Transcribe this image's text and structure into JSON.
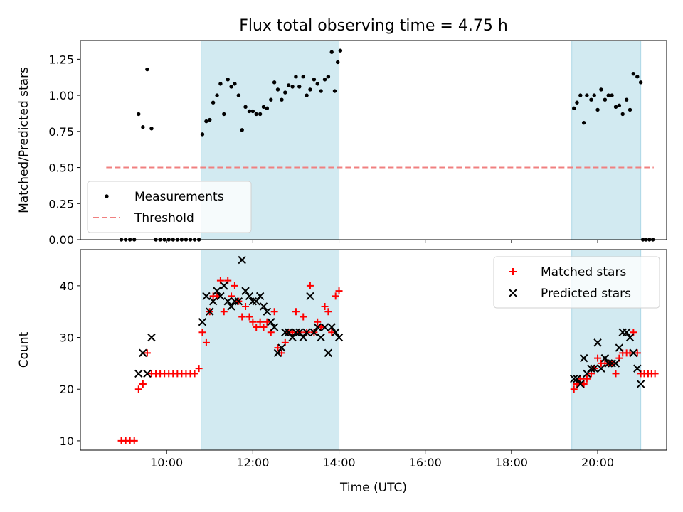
{
  "chart_data": {
    "title": "Flux total observing time = 4.75 h",
    "xlabel": "Time (UTC)",
    "x_units": "hours UTC",
    "xlim": [
      8.0,
      21.6
    ],
    "x_ticks": [
      {
        "value": 10,
        "label": "10:00"
      },
      {
        "value": 12,
        "label": "12:00"
      },
      {
        "value": 14,
        "label": "14:00"
      },
      {
        "value": 16,
        "label": "16:00"
      },
      {
        "value": 18,
        "label": "18:00"
      },
      {
        "value": 20,
        "label": "20:00"
      }
    ],
    "shaded_intervals": [
      [
        10.8,
        14.0
      ],
      [
        19.4,
        21.0
      ]
    ],
    "shade_color": "#add8e6",
    "panels": [
      {
        "type": "scatter",
        "ylabel": "Matched/Predicted stars",
        "ylim": [
          0,
          1.38
        ],
        "y_ticks": [
          "0.00",
          "0.25",
          "0.50",
          "0.75",
          "1.00",
          "1.25"
        ],
        "legend": {
          "position": "lower-left"
        },
        "series": [
          {
            "name": "Measurements",
            "marker": "dot",
            "color": "#000000",
            "points": [
              [
                8.95,
                0
              ],
              [
                9.05,
                0
              ],
              [
                9.15,
                0
              ],
              [
                9.25,
                0
              ],
              [
                9.35,
                0.87
              ],
              [
                9.45,
                0.78
              ],
              [
                9.55,
                1.18
              ],
              [
                9.65,
                0.77
              ],
              [
                9.75,
                0
              ],
              [
                9.85,
                0
              ],
              [
                9.95,
                0
              ],
              [
                10.05,
                0
              ],
              [
                10.15,
                0
              ],
              [
                10.25,
                0
              ],
              [
                10.35,
                0
              ],
              [
                10.45,
                0
              ],
              [
                10.55,
                0
              ],
              [
                10.65,
                0
              ],
              [
                10.75,
                0
              ],
              [
                10.83,
                0.73
              ],
              [
                10.92,
                0.82
              ],
              [
                11.0,
                0.83
              ],
              [
                11.08,
                0.95
              ],
              [
                11.17,
                1.0
              ],
              [
                11.25,
                1.08
              ],
              [
                11.33,
                0.87
              ],
              [
                11.42,
                1.11
              ],
              [
                11.5,
                1.06
              ],
              [
                11.58,
                1.08
              ],
              [
                11.67,
                1.0
              ],
              [
                11.75,
                0.76
              ],
              [
                11.83,
                0.92
              ],
              [
                11.92,
                0.89
              ],
              [
                12.0,
                0.89
              ],
              [
                12.08,
                0.87
              ],
              [
                12.17,
                0.87
              ],
              [
                12.25,
                0.92
              ],
              [
                12.33,
                0.91
              ],
              [
                12.42,
                0.97
              ],
              [
                12.5,
                1.09
              ],
              [
                12.58,
                1.04
              ],
              [
                12.67,
                0.97
              ],
              [
                12.75,
                1.02
              ],
              [
                12.83,
                1.07
              ],
              [
                12.92,
                1.06
              ],
              [
                13.0,
                1.13
              ],
              [
                13.08,
                1.06
              ],
              [
                13.17,
                1.13
              ],
              [
                13.25,
                1.0
              ],
              [
                13.33,
                1.04
              ],
              [
                13.42,
                1.11
              ],
              [
                13.5,
                1.08
              ],
              [
                13.58,
                1.03
              ],
              [
                13.67,
                1.11
              ],
              [
                13.75,
                1.13
              ],
              [
                13.83,
                1.3
              ],
              [
                13.9,
                1.03
              ],
              [
                13.97,
                1.23
              ],
              [
                14.03,
                1.31
              ],
              [
                19.45,
                0.91
              ],
              [
                19.52,
                0.95
              ],
              [
                19.6,
                1.0
              ],
              [
                19.68,
                0.81
              ],
              [
                19.75,
                1.0
              ],
              [
                19.85,
                0.97
              ],
              [
                19.92,
                1.0
              ],
              [
                20.0,
                0.9
              ],
              [
                20.08,
                1.04
              ],
              [
                20.17,
                0.97
              ],
              [
                20.25,
                1.0
              ],
              [
                20.33,
                1.0
              ],
              [
                20.42,
                0.92
              ],
              [
                20.5,
                0.93
              ],
              [
                20.58,
                0.87
              ],
              [
                20.67,
                0.97
              ],
              [
                20.75,
                0.9
              ],
              [
                20.83,
                1.15
              ],
              [
                20.92,
                1.13
              ],
              [
                21.0,
                1.09
              ],
              [
                21.05,
                0
              ],
              [
                21.12,
                0
              ],
              [
                21.2,
                0
              ],
              [
                21.28,
                0
              ]
            ]
          },
          {
            "name": "Threshold",
            "marker": "dashed-line",
            "color": "#f08080",
            "x": [
              8.6,
              21.3
            ],
            "y": [
              0.5,
              0.5
            ]
          }
        ]
      },
      {
        "type": "scatter",
        "ylabel": "Count",
        "ylim": [
          8.2,
          47
        ],
        "y_ticks": [
          "10",
          "20",
          "30",
          "40"
        ],
        "legend": {
          "position": "top-right"
        },
        "series": [
          {
            "name": "Matched stars",
            "marker": "plus",
            "color": "#ff0000",
            "points": [
              [
                8.95,
                10
              ],
              [
                9.05,
                10
              ],
              [
                9.15,
                10
              ],
              [
                9.25,
                10
              ],
              [
                9.35,
                20
              ],
              [
                9.45,
                21
              ],
              [
                9.55,
                27
              ],
              [
                9.65,
                23
              ],
              [
                9.75,
                23
              ],
              [
                9.85,
                23
              ],
              [
                9.95,
                23
              ],
              [
                10.05,
                23
              ],
              [
                10.15,
                23
              ],
              [
                10.25,
                23
              ],
              [
                10.35,
                23
              ],
              [
                10.45,
                23
              ],
              [
                10.55,
                23
              ],
              [
                10.65,
                23
              ],
              [
                10.75,
                24
              ],
              [
                10.83,
                31
              ],
              [
                10.92,
                29
              ],
              [
                11.0,
                35
              ],
              [
                11.08,
                38
              ],
              [
                11.17,
                38
              ],
              [
                11.25,
                41
              ],
              [
                11.33,
                35
              ],
              [
                11.42,
                41
              ],
              [
                11.5,
                38
              ],
              [
                11.58,
                40
              ],
              [
                11.67,
                37
              ],
              [
                11.75,
                34
              ],
              [
                11.83,
                36
              ],
              [
                11.92,
                34
              ],
              [
                12.0,
                33
              ],
              [
                12.08,
                32
              ],
              [
                12.17,
                33
              ],
              [
                12.25,
                32
              ],
              [
                12.33,
                33
              ],
              [
                12.42,
                31
              ],
              [
                12.5,
                35
              ],
              [
                12.58,
                28
              ],
              [
                12.67,
                27
              ],
              [
                12.75,
                29
              ],
              [
                12.83,
                31
              ],
              [
                12.92,
                31
              ],
              [
                13.0,
                35
              ],
              [
                13.08,
                31
              ],
              [
                13.17,
                34
              ],
              [
                13.25,
                31
              ],
              [
                13.33,
                40
              ],
              [
                13.42,
                31
              ],
              [
                13.5,
                33
              ],
              [
                13.58,
                32
              ],
              [
                13.67,
                36
              ],
              [
                13.75,
                35
              ],
              [
                13.83,
                31
              ],
              [
                13.92,
                38
              ],
              [
                14.0,
                39
              ],
              [
                19.45,
                20
              ],
              [
                19.52,
                21
              ],
              [
                19.6,
                22
              ],
              [
                19.68,
                21
              ],
              [
                19.75,
                22
              ],
              [
                19.85,
                23
              ],
              [
                19.92,
                24
              ],
              [
                20.0,
                26
              ],
              [
                20.08,
                25
              ],
              [
                20.17,
                25
              ],
              [
                20.25,
                25
              ],
              [
                20.33,
                25
              ],
              [
                20.42,
                23
              ],
              [
                20.5,
                26
              ],
              [
                20.58,
                27
              ],
              [
                20.67,
                27
              ],
              [
                20.75,
                27
              ],
              [
                20.83,
                31
              ],
              [
                20.92,
                27
              ],
              [
                21.0,
                23
              ],
              [
                21.08,
                23
              ],
              [
                21.17,
                23
              ],
              [
                21.25,
                23
              ],
              [
                21.33,
                23
              ]
            ]
          },
          {
            "name": "Predicted stars",
            "marker": "x",
            "color": "#000000",
            "points": [
              [
                9.35,
                23
              ],
              [
                9.45,
                27
              ],
              [
                9.55,
                23
              ],
              [
                9.65,
                30
              ],
              [
                10.83,
                33
              ],
              [
                10.92,
                38
              ],
              [
                11.0,
                35
              ],
              [
                11.08,
                37
              ],
              [
                11.17,
                39
              ],
              [
                11.25,
                38
              ],
              [
                11.33,
                40
              ],
              [
                11.42,
                37
              ],
              [
                11.5,
                36
              ],
              [
                11.58,
                37
              ],
              [
                11.67,
                37
              ],
              [
                11.75,
                45
              ],
              [
                11.83,
                39
              ],
              [
                11.92,
                38
              ],
              [
                12.0,
                37
              ],
              [
                12.08,
                37
              ],
              [
                12.17,
                38
              ],
              [
                12.25,
                36
              ],
              [
                12.33,
                35
              ],
              [
                12.42,
                33
              ],
              [
                12.5,
                32
              ],
              [
                12.58,
                27
              ],
              [
                12.67,
                28
              ],
              [
                12.75,
                31
              ],
              [
                12.83,
                31
              ],
              [
                12.92,
                30
              ],
              [
                13.0,
                31
              ],
              [
                13.08,
                31
              ],
              [
                13.17,
                30
              ],
              [
                13.25,
                31
              ],
              [
                13.33,
                38
              ],
              [
                13.42,
                31
              ],
              [
                13.5,
                32
              ],
              [
                13.58,
                30
              ],
              [
                13.67,
                32
              ],
              [
                13.75,
                27
              ],
              [
                13.83,
                32
              ],
              [
                13.92,
                31
              ],
              [
                14.0,
                30
              ],
              [
                19.45,
                22
              ],
              [
                19.52,
                22
              ],
              [
                19.6,
                21
              ],
              [
                19.68,
                26
              ],
              [
                19.75,
                23
              ],
              [
                19.85,
                24
              ],
              [
                19.92,
                24
              ],
              [
                20.0,
                29
              ],
              [
                20.08,
                24
              ],
              [
                20.17,
                26
              ],
              [
                20.25,
                25
              ],
              [
                20.33,
                25
              ],
              [
                20.42,
                25
              ],
              [
                20.5,
                28
              ],
              [
                20.58,
                31
              ],
              [
                20.67,
                31
              ],
              [
                20.75,
                30
              ],
              [
                20.83,
                27
              ],
              [
                20.92,
                24
              ],
              [
                21.0,
                21
              ]
            ]
          }
        ]
      }
    ]
  }
}
